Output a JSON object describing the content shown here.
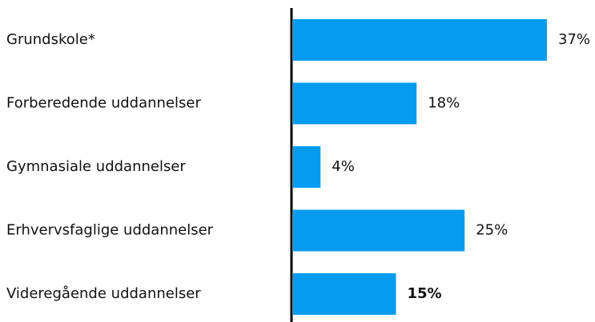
{
  "chart_data": {
    "type": "bar",
    "orientation": "horizontal",
    "categories": [
      "Grundskole*",
      "Forberedende uddannelser",
      "Gymnasiale uddannelser",
      "Erhvervsfaglige uddannelser",
      "Videregående uddannelser"
    ],
    "values": [
      37,
      18,
      4,
      25,
      15
    ],
    "value_labels": [
      "37%",
      "18%",
      "4%",
      "25%",
      "15%"
    ],
    "color": "#059cf0"
  }
}
